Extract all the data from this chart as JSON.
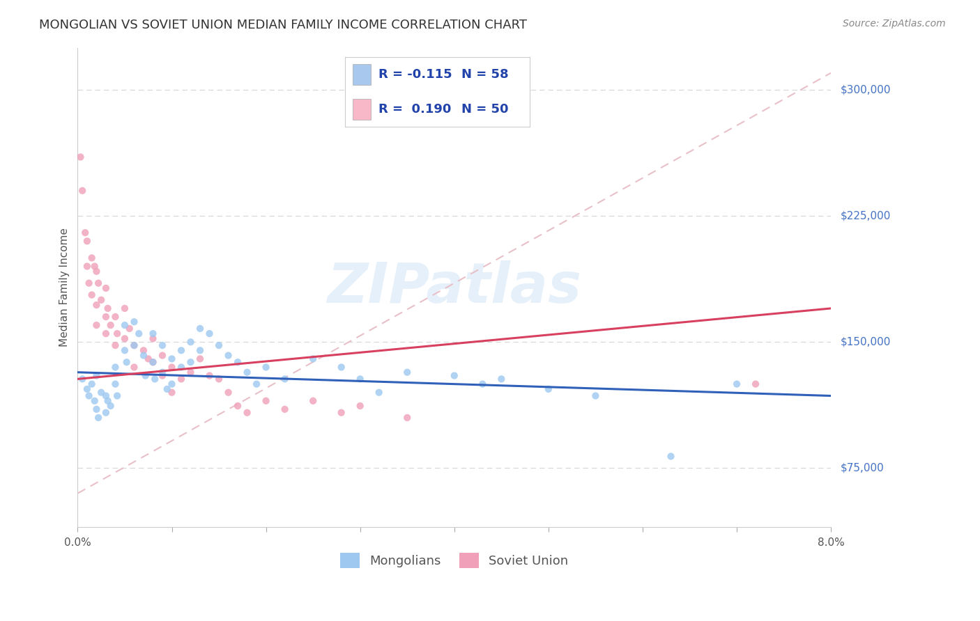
{
  "title": "MONGOLIAN VS SOVIET UNION MEDIAN FAMILY INCOME CORRELATION CHART",
  "source": "Source: ZipAtlas.com",
  "ylabel": "Median Family Income",
  "yticks": [
    75000,
    150000,
    225000,
    300000
  ],
  "ytick_labels": [
    "$75,000",
    "$150,000",
    "$225,000",
    "$300,000"
  ],
  "legend_entries": [
    {
      "label": "Mongolians",
      "color": "#a8c8ee",
      "R": "-0.115",
      "N": "58"
    },
    {
      "label": "Soviet Union",
      "color": "#f8b8c8",
      "R": "0.190",
      "N": "50"
    }
  ],
  "mongolian_scatter": [
    [
      0.0005,
      128000
    ],
    [
      0.001,
      122000
    ],
    [
      0.0012,
      118000
    ],
    [
      0.0015,
      125000
    ],
    [
      0.0018,
      115000
    ],
    [
      0.002,
      130000
    ],
    [
      0.002,
      110000
    ],
    [
      0.0022,
      105000
    ],
    [
      0.0025,
      120000
    ],
    [
      0.003,
      118000
    ],
    [
      0.003,
      108000
    ],
    [
      0.0032,
      115000
    ],
    [
      0.0035,
      112000
    ],
    [
      0.004,
      135000
    ],
    [
      0.004,
      125000
    ],
    [
      0.0042,
      118000
    ],
    [
      0.005,
      160000
    ],
    [
      0.005,
      145000
    ],
    [
      0.0052,
      138000
    ],
    [
      0.006,
      162000
    ],
    [
      0.006,
      148000
    ],
    [
      0.0065,
      155000
    ],
    [
      0.007,
      142000
    ],
    [
      0.0072,
      130000
    ],
    [
      0.008,
      155000
    ],
    [
      0.008,
      138000
    ],
    [
      0.0082,
      128000
    ],
    [
      0.009,
      148000
    ],
    [
      0.009,
      132000
    ],
    [
      0.0095,
      122000
    ],
    [
      0.01,
      140000
    ],
    [
      0.01,
      125000
    ],
    [
      0.011,
      145000
    ],
    [
      0.011,
      135000
    ],
    [
      0.012,
      150000
    ],
    [
      0.012,
      138000
    ],
    [
      0.013,
      158000
    ],
    [
      0.013,
      145000
    ],
    [
      0.014,
      155000
    ],
    [
      0.015,
      148000
    ],
    [
      0.016,
      142000
    ],
    [
      0.017,
      138000
    ],
    [
      0.018,
      132000
    ],
    [
      0.019,
      125000
    ],
    [
      0.02,
      135000
    ],
    [
      0.022,
      128000
    ],
    [
      0.025,
      140000
    ],
    [
      0.028,
      135000
    ],
    [
      0.03,
      128000
    ],
    [
      0.032,
      120000
    ],
    [
      0.035,
      132000
    ],
    [
      0.04,
      130000
    ],
    [
      0.043,
      125000
    ],
    [
      0.045,
      128000
    ],
    [
      0.05,
      122000
    ],
    [
      0.055,
      118000
    ],
    [
      0.063,
      82000
    ],
    [
      0.07,
      125000
    ]
  ],
  "soviet_scatter": [
    [
      0.0003,
      260000
    ],
    [
      0.0005,
      240000
    ],
    [
      0.0008,
      215000
    ],
    [
      0.001,
      195000
    ],
    [
      0.001,
      210000
    ],
    [
      0.0012,
      185000
    ],
    [
      0.0015,
      200000
    ],
    [
      0.0015,
      178000
    ],
    [
      0.0018,
      195000
    ],
    [
      0.002,
      192000
    ],
    [
      0.002,
      172000
    ],
    [
      0.002,
      160000
    ],
    [
      0.0022,
      185000
    ],
    [
      0.0025,
      175000
    ],
    [
      0.003,
      182000
    ],
    [
      0.003,
      165000
    ],
    [
      0.003,
      155000
    ],
    [
      0.0032,
      170000
    ],
    [
      0.0035,
      160000
    ],
    [
      0.004,
      165000
    ],
    [
      0.004,
      148000
    ],
    [
      0.0042,
      155000
    ],
    [
      0.005,
      170000
    ],
    [
      0.005,
      152000
    ],
    [
      0.0055,
      158000
    ],
    [
      0.006,
      148000
    ],
    [
      0.006,
      135000
    ],
    [
      0.007,
      145000
    ],
    [
      0.0075,
      140000
    ],
    [
      0.008,
      152000
    ],
    [
      0.008,
      138000
    ],
    [
      0.009,
      142000
    ],
    [
      0.009,
      130000
    ],
    [
      0.01,
      135000
    ],
    [
      0.01,
      120000
    ],
    [
      0.011,
      128000
    ],
    [
      0.012,
      132000
    ],
    [
      0.013,
      140000
    ],
    [
      0.014,
      130000
    ],
    [
      0.015,
      128000
    ],
    [
      0.016,
      120000
    ],
    [
      0.017,
      112000
    ],
    [
      0.018,
      108000
    ],
    [
      0.02,
      115000
    ],
    [
      0.022,
      110000
    ],
    [
      0.025,
      115000
    ],
    [
      0.028,
      108000
    ],
    [
      0.03,
      112000
    ],
    [
      0.035,
      105000
    ],
    [
      0.072,
      125000
    ]
  ],
  "blue_line": {
    "x": [
      0.0,
      0.08
    ],
    "y": [
      132000,
      118000
    ]
  },
  "pink_line": {
    "x": [
      0.0,
      0.08
    ],
    "y": [
      128000,
      170000
    ]
  },
  "dashed_line": {
    "x": [
      0.0,
      0.08
    ],
    "y": [
      60000,
      310000
    ]
  },
  "scatter_size": 55,
  "mongolian_color": "#9ec8f0",
  "soviet_color": "#f0a0b8",
  "blue_line_color": "#3060b8",
  "pink_line_color": "#d84060",
  "dashed_line_color": "#e8c0c8",
  "background_color": "#ffffff",
  "title_fontsize": 13,
  "axis_label_fontsize": 11,
  "tick_fontsize": 11,
  "legend_fontsize": 13,
  "watermark_text": "ZIPatlas",
  "xmin": 0.0,
  "xmax": 0.08,
  "ymin": 40000,
  "ymax": 325000
}
